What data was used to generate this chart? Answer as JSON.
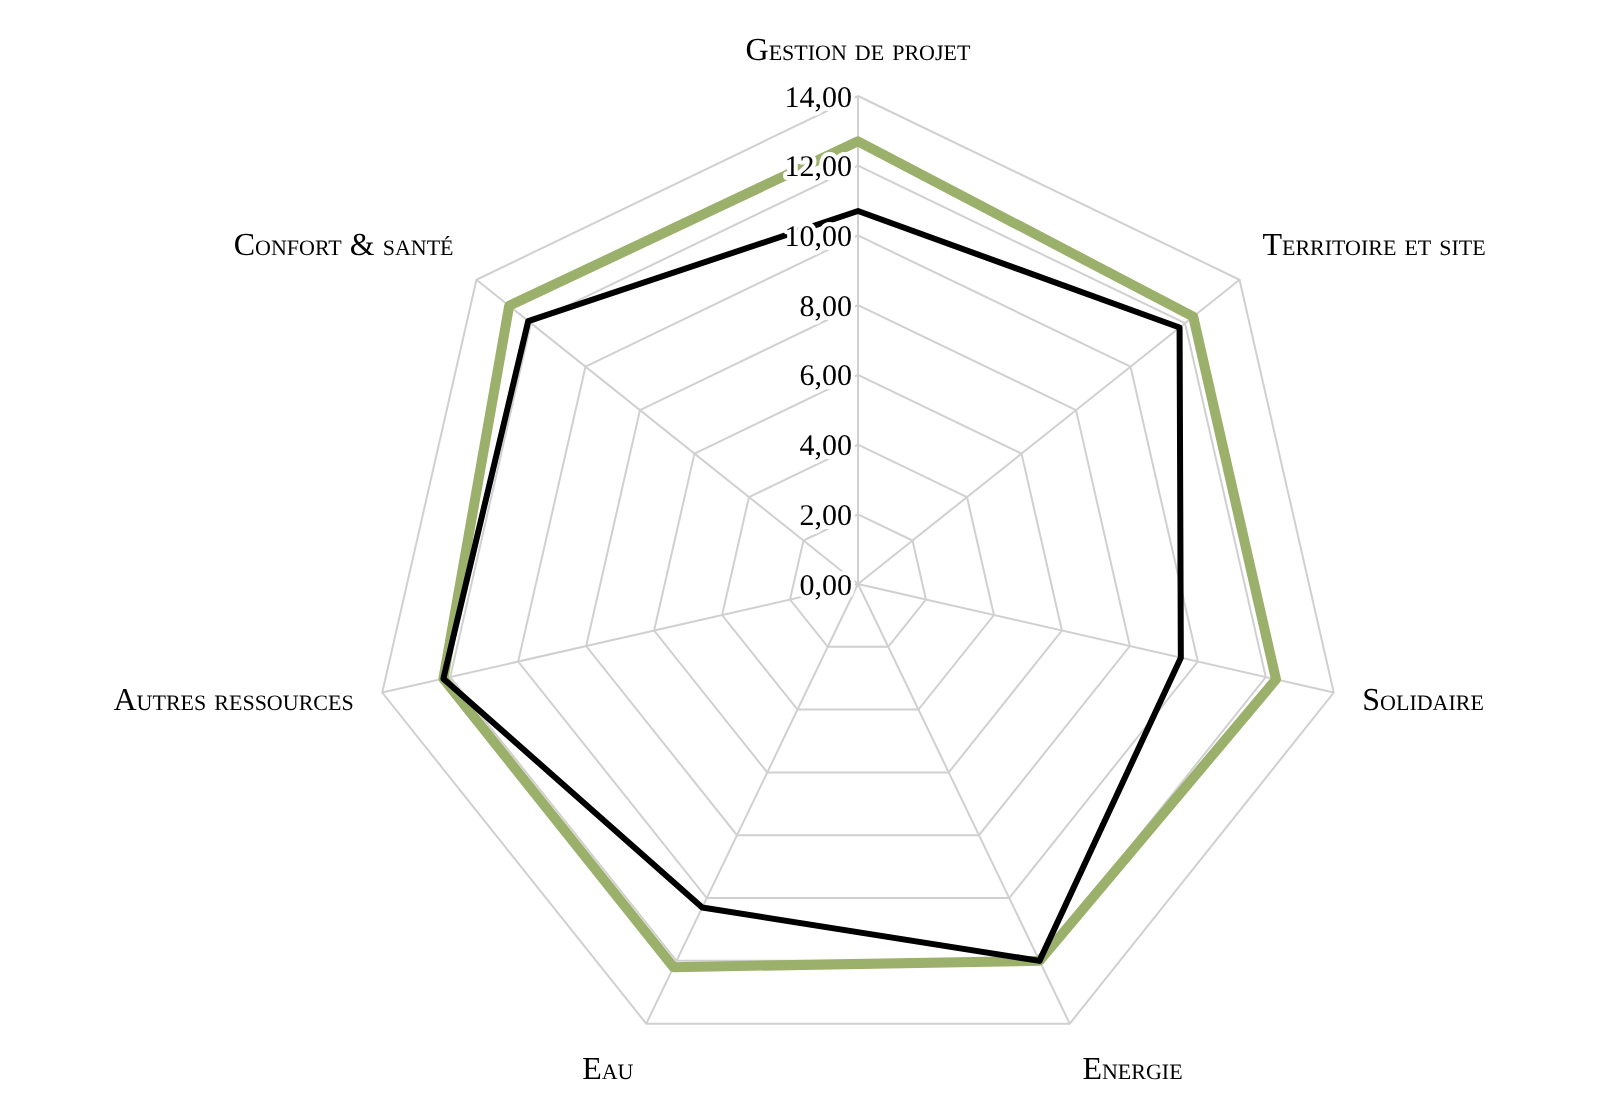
{
  "chart_data": {
    "type": "radar",
    "categories": [
      "Gestion de projet",
      "Territoire et site",
      "Solidaire",
      "Energie",
      "Eau",
      "Autres ressources",
      "Confort & santé"
    ],
    "series": [
      {
        "color": "#9bb06b",
        "values": [
          12.7,
          12.3,
          12.3,
          12.0,
          12.2,
          12.2,
          12.8
        ]
      },
      {
        "color": "#000000",
        "values": [
          10.7,
          11.8,
          9.5,
          12.0,
          10.3,
          12.2,
          12.1
        ]
      }
    ],
    "ylim": [
      0,
      14
    ],
    "yticks": [
      {
        "value": 0,
        "label": "0,00"
      },
      {
        "value": 2,
        "label": "2,00"
      },
      {
        "value": 4,
        "label": "4,00"
      },
      {
        "value": 6,
        "label": "6,00"
      },
      {
        "value": 8,
        "label": "8,00"
      },
      {
        "value": 10,
        "label": "10,00"
      },
      {
        "value": 12,
        "label": "12,00"
      },
      {
        "value": 14,
        "label": "14,00"
      }
    ],
    "grid": true
  }
}
